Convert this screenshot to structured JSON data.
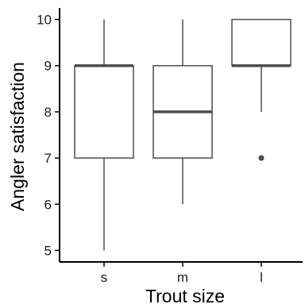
{
  "chart_data": {
    "type": "box",
    "xlabel": "Trout size",
    "ylabel": "Angler satisfaction",
    "ylim": [
      4.75,
      10.25
    ],
    "yticks": [
      5,
      6,
      7,
      8,
      9,
      10
    ],
    "categories": [
      "s",
      "m",
      "l"
    ],
    "boxes": [
      {
        "category": "s",
        "whisker_low": 5,
        "q1": 7,
        "median": 9,
        "q3": 9,
        "whisker_high": 10,
        "outliers": []
      },
      {
        "category": "m",
        "whisker_low": 6,
        "q1": 7,
        "median": 8,
        "q3": 9,
        "whisker_high": 10,
        "outliers": []
      },
      {
        "category": "l",
        "whisker_low": 8,
        "q1": 9,
        "median": 9,
        "q3": 10,
        "whisker_high": 10,
        "outliers": [
          7
        ]
      }
    ],
    "grid": false,
    "colors": {
      "box_line": "#4d4d4d",
      "axis_line": "#000000",
      "outlier": "#4d4d4d",
      "text": "#1a1a1a"
    }
  }
}
